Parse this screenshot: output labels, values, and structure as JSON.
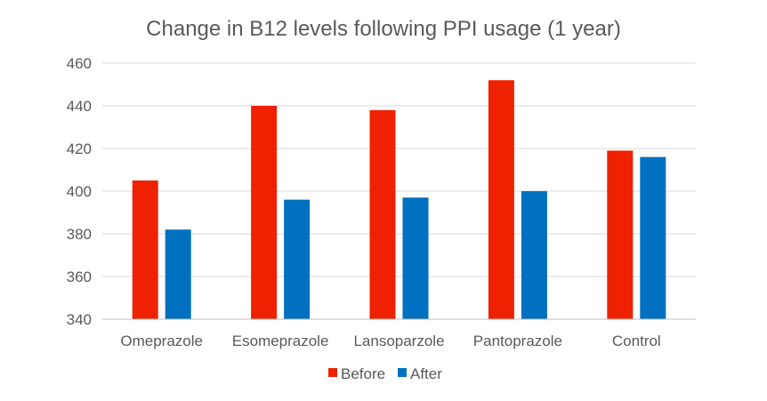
{
  "chart_data": {
    "type": "bar",
    "title": "Change in B12 levels following PPI usage (1 year)",
    "categories": [
      "Omeprazole",
      "Esomeprazole",
      "Lansoparzole",
      "Pantoprazole",
      "Control"
    ],
    "series": [
      {
        "name": "Before",
        "color": "#ee2200",
        "values": [
          405,
          440,
          438,
          452,
          419
        ]
      },
      {
        "name": "After",
        "color": "#0070c0",
        "values": [
          382,
          396,
          397,
          400,
          416
        ]
      }
    ],
    "ylim": [
      340,
      460
    ],
    "yticks": [
      340,
      360,
      380,
      400,
      420,
      440,
      460
    ],
    "grid": true,
    "legend_position": "bottom"
  }
}
